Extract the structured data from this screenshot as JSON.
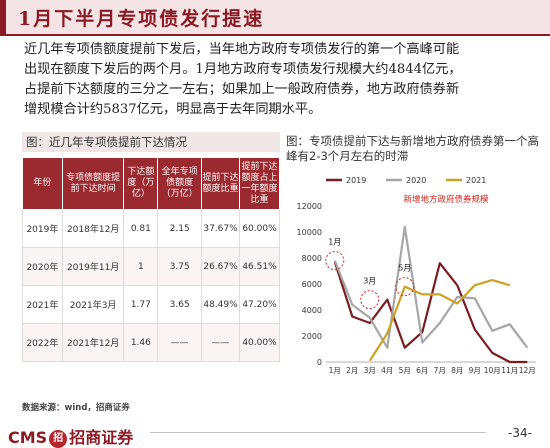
{
  "header": {
    "title": "1月下半月专项债发行提速"
  },
  "body_lines": [
    "近几年专项债额度提前下发后，当年地方政府专项债发行的第一个高峰可能",
    "出现在额度下发后的两个月。1月地方政府专项债发行规模大约4844亿元，",
    "占提前下达额度的三分之一左右；如果加上一般政府债券，地方政府债券新",
    "增规模合计约5837亿元，明显高于去年同期水平。"
  ],
  "table": {
    "caption": "图：近几年专项债提前下达情况",
    "headers": [
      "年份",
      "专项债额度提前下达时间",
      "下达额度（万亿）",
      "全年专项债额度（万亿）",
      "提前下达额度比重",
      "提前下达额度占上一年额度比重"
    ],
    "rows": [
      [
        "2019年",
        "2018年12月",
        "0.81",
        "2.15",
        "37.67%",
        "60.00%"
      ],
      [
        "2020年",
        "2019年11月",
        "1",
        "3.75",
        "26.67%",
        "46.51%"
      ],
      [
        "2021年",
        "2021年3月",
        "1.77",
        "3.65",
        "48.49%",
        "47.20%"
      ],
      [
        "2022年",
        "2021年12月",
        "1.46",
        "——",
        "——",
        "40.00%"
      ]
    ],
    "source": "数据来源：wind，招商证券"
  },
  "chart_caption": "图：专项债提前下达与新增地方政府债券第一个高峰有2-3个月左右的时滞",
  "chart_data": {
    "type": "line",
    "title": "新增地方政府债券规模",
    "categories": [
      "1月",
      "2月",
      "3月",
      "4月",
      "5月",
      "6月",
      "7月",
      "8月",
      "9月",
      "10月",
      "11月",
      "12月"
    ],
    "ylim": [
      0,
      12000
    ],
    "yticks": [
      0,
      2000,
      4000,
      6000,
      8000,
      10000,
      12000
    ],
    "series": [
      {
        "name": "2019",
        "color": "#7b1d22",
        "values": [
          7700,
          3500,
          3000,
          4800,
          1100,
          2300,
          7600,
          5900,
          2500,
          700,
          0,
          0
        ]
      },
      {
        "name": "2020",
        "color": "#a6a6a6",
        "values": [
          7800,
          4400,
          3400,
          1100,
          10400,
          1500,
          3000,
          5000,
          4900,
          2400,
          2900,
          1100
        ]
      },
      {
        "name": "2021",
        "color": "#c9a227",
        "values": [
          null,
          null,
          100,
          2200,
          5800,
          5200,
          5200,
          4500,
          5900,
          6300,
          5900,
          null
        ]
      }
    ],
    "annotations": [
      "1月",
      "3月",
      "5月"
    ]
  },
  "footer": {
    "logo_text": "CMS",
    "brand": "招商证券",
    "page": "-34-"
  }
}
